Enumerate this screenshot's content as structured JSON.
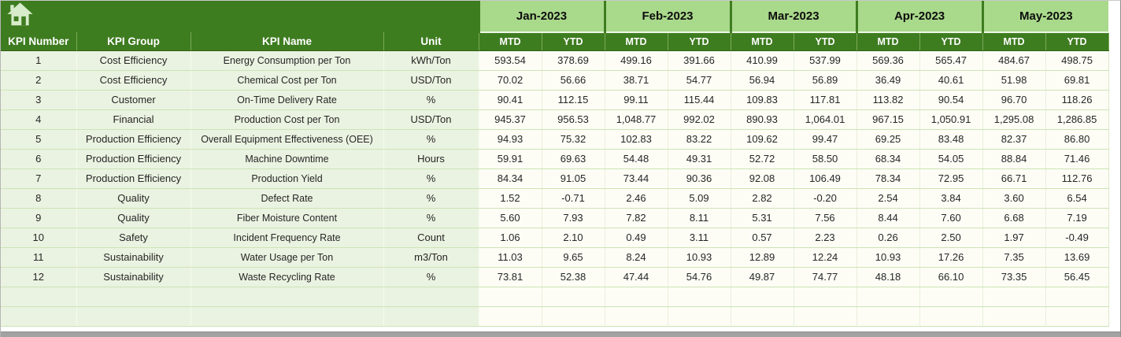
{
  "banner": {
    "icon": "home-icon"
  },
  "table": {
    "months": [
      "Jan-2023",
      "Feb-2023",
      "Mar-2023",
      "Apr-2023",
      "May-2023"
    ],
    "left_headers": [
      "KPI Number",
      "KPI Group",
      "KPI Name",
      "Unit"
    ],
    "sub_headers": [
      "MTD",
      "YTD"
    ],
    "rows": [
      {
        "kpi_number": "1",
        "kpi_group": "Cost Efficiency",
        "kpi_name": "Energy Consumption per Ton",
        "unit": "kWh/Ton",
        "values": [
          "593.54",
          "378.69",
          "499.16",
          "391.66",
          "410.99",
          "537.99",
          "569.36",
          "565.47",
          "484.67",
          "498.75"
        ]
      },
      {
        "kpi_number": "2",
        "kpi_group": "Cost Efficiency",
        "kpi_name": "Chemical Cost per Ton",
        "unit": "USD/Ton",
        "values": [
          "70.02",
          "56.66",
          "38.71",
          "54.77",
          "56.94",
          "56.89",
          "36.49",
          "40.61",
          "51.98",
          "69.81"
        ]
      },
      {
        "kpi_number": "3",
        "kpi_group": "Customer",
        "kpi_name": "On-Time Delivery Rate",
        "unit": "%",
        "values": [
          "90.41",
          "112.15",
          "99.11",
          "115.44",
          "109.83",
          "117.81",
          "113.82",
          "90.54",
          "96.70",
          "118.26"
        ]
      },
      {
        "kpi_number": "4",
        "kpi_group": "Financial",
        "kpi_name": "Production Cost per Ton",
        "unit": "USD/Ton",
        "values": [
          "945.37",
          "956.53",
          "1,048.77",
          "992.02",
          "890.93",
          "1,064.01",
          "967.15",
          "1,050.91",
          "1,295.08",
          "1,286.85"
        ]
      },
      {
        "kpi_number": "5",
        "kpi_group": "Production Efficiency",
        "kpi_name": "Overall Equipment Effectiveness (OEE)",
        "unit": "%",
        "values": [
          "94.93",
          "75.32",
          "102.83",
          "83.22",
          "109.62",
          "99.47",
          "69.25",
          "83.48",
          "82.37",
          "86.80"
        ]
      },
      {
        "kpi_number": "6",
        "kpi_group": "Production Efficiency",
        "kpi_name": "Machine Downtime",
        "unit": "Hours",
        "values": [
          "59.91",
          "69.63",
          "54.48",
          "49.31",
          "52.72",
          "58.50",
          "68.34",
          "54.05",
          "88.84",
          "71.46"
        ]
      },
      {
        "kpi_number": "7",
        "kpi_group": "Production Efficiency",
        "kpi_name": "Production Yield",
        "unit": "%",
        "values": [
          "84.34",
          "91.05",
          "73.44",
          "90.36",
          "92.08",
          "106.49",
          "78.34",
          "72.95",
          "66.71",
          "112.76"
        ]
      },
      {
        "kpi_number": "8",
        "kpi_group": "Quality",
        "kpi_name": "Defect Rate",
        "unit": "%",
        "values": [
          "1.52",
          "-0.71",
          "2.46",
          "5.09",
          "2.82",
          "-0.20",
          "2.54",
          "3.84",
          "3.60",
          "6.54"
        ]
      },
      {
        "kpi_number": "9",
        "kpi_group": "Quality",
        "kpi_name": "Fiber Moisture Content",
        "unit": "%",
        "values": [
          "5.60",
          "7.93",
          "7.82",
          "8.11",
          "5.31",
          "7.56",
          "8.44",
          "7.60",
          "6.68",
          "7.19"
        ]
      },
      {
        "kpi_number": "10",
        "kpi_group": "Safety",
        "kpi_name": "Incident Frequency Rate",
        "unit": "Count",
        "values": [
          "1.06",
          "2.10",
          "0.49",
          "3.11",
          "0.57",
          "2.23",
          "0.26",
          "2.50",
          "1.97",
          "-0.49"
        ]
      },
      {
        "kpi_number": "11",
        "kpi_group": "Sustainability",
        "kpi_name": "Water Usage per Ton",
        "unit": "m3/Ton",
        "values": [
          "11.03",
          "9.65",
          "8.24",
          "10.93",
          "12.89",
          "12.24",
          "10.93",
          "17.26",
          "7.35",
          "13.69"
        ]
      },
      {
        "kpi_number": "12",
        "kpi_group": "Sustainability",
        "kpi_name": "Waste Recycling Rate",
        "unit": "%",
        "values": [
          "73.81",
          "52.38",
          "47.44",
          "54.76",
          "49.87",
          "74.77",
          "48.18",
          "66.10",
          "73.35",
          "56.45"
        ]
      }
    ],
    "empty_row_count": 2
  },
  "colors": {
    "header_dark_green": "#3e7c20",
    "month_light_green": "#a9d98b",
    "row_left_bg": "#eaf3e1",
    "row_value_bg": "#fdfdf6",
    "gridline": "#cde4b5",
    "header_text": "#ffffff",
    "body_text": "#262626",
    "window_edge_gray": "#a2a2a2"
  }
}
